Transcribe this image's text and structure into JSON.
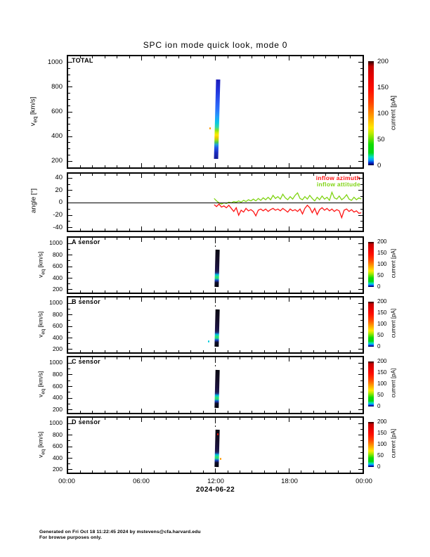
{
  "page": {
    "title": "SPC ion mode quick look, mode 0",
    "footer_line1": "Generated on Fri Oct 18 11:22:45 2024 by mstevens@cfa.harvard.edu",
    "footer_line2": "For browse purposes only."
  },
  "panels": {
    "total": {
      "label": "TOTAL"
    },
    "a": {
      "label": "A sensor"
    },
    "b": {
      "label": "B sensor"
    },
    "c": {
      "label": "C sensor"
    },
    "d": {
      "label": "D sensor"
    }
  },
  "ylabel_veq": {
    "base": "v",
    "sub": "eq",
    "unit": " [km/s]"
  },
  "ylabel_angle": "angle [°]",
  "legend": {
    "azimuth": {
      "label": "inflow azimuth",
      "color": "#ff1414"
    },
    "attitude": {
      "label": "inflow attitude",
      "color": "#80d414"
    }
  },
  "colorbar": {
    "label": "current [pA]",
    "ticks": [
      "200",
      "150",
      "100",
      "50",
      "0"
    ]
  },
  "chart_data": {
    "type": "heatmap",
    "title": "SPC ion mode quick look, mode 0",
    "date": "2024-06-22",
    "x_axis": {
      "ticks": [
        "00:00",
        "06:00",
        "12:00",
        "18:00",
        "00:00"
      ],
      "range_hours": [
        0,
        24
      ],
      "major_step_hours": 6,
      "minor_step_hours": 1
    },
    "colorbar": {
      "label": "current [pA]",
      "range_pA": [
        0,
        200
      ],
      "tick_values": [
        200,
        150,
        100,
        50,
        0
      ],
      "colormap_stops": [
        [
          0,
          "#000030"
        ],
        [
          2,
          "#0018c0"
        ],
        [
          5,
          "#00a0ff"
        ],
        [
          8,
          "#00e0c0"
        ],
        [
          12,
          "#00d818"
        ],
        [
          20,
          "#10dc00"
        ],
        [
          26,
          "#72e400"
        ],
        [
          31,
          "#c0ec00"
        ],
        [
          36,
          "#ffe800"
        ],
        [
          43,
          "#ffb800"
        ],
        [
          50,
          "#ff8800"
        ],
        [
          60,
          "#ff4400"
        ],
        [
          72,
          "#ff1000"
        ],
        [
          85,
          "#e60000"
        ],
        [
          95,
          "#c40000"
        ],
        [
          98,
          "#660000"
        ],
        [
          100,
          "#1c0000"
        ]
      ]
    },
    "spectrogram_panels": [
      {
        "id": "total",
        "label": "TOTAL",
        "ylabel": "veq [km/s]",
        "y_range": [
          150,
          1050
        ],
        "y_ticks": [
          1000,
          800,
          600,
          400,
          200
        ],
        "y_minor_step": 50,
        "streak": {
          "t_start": 11.95,
          "t_end": 12.3,
          "v_min": 217,
          "v_max": 861,
          "gradient_top_to_bottom": [
            [
              0,
              "#1c1cb8"
            ],
            [
              12,
              "#2130d8"
            ],
            [
              25,
              "#2850ee"
            ],
            [
              38,
              "#2b74fc"
            ],
            [
              47,
              "#22a0fa"
            ],
            [
              54,
              "#08c6e6"
            ],
            [
              60,
              "#30d8a8"
            ],
            [
              64,
              "#86e41c"
            ],
            [
              67,
              "#d2ec00"
            ],
            [
              70,
              "#ffe600"
            ],
            [
              73,
              "#f0ca00"
            ],
            [
              76,
              "#a8dc10"
            ],
            [
              79,
              "#4cc84c"
            ],
            [
              82,
              "#22a0dc"
            ],
            [
              86,
              "#2356e8"
            ],
            [
              92,
              "#1c2cc0"
            ],
            [
              100,
              "#141c96"
            ]
          ]
        },
        "dots": [
          {
            "t": 11.57,
            "v": 472,
            "color": "#ff9900"
          }
        ],
        "dash_at_t": null
      },
      {
        "id": "a",
        "label": "A sensor",
        "ylabel": "veq [km/s]",
        "y_range": [
          150,
          1100
        ],
        "y_ticks": [
          1000,
          800,
          600,
          400,
          200
        ],
        "y_minor_step": 100,
        "streak": {
          "t_start": 11.95,
          "t_end": 12.3,
          "v_min": 244,
          "v_max": 890,
          "gradient_top_to_bottom": [
            [
              0,
              "#0a0a12"
            ],
            [
              25,
              "#140e26"
            ],
            [
              45,
              "#1a123c"
            ],
            [
              58,
              "#201a50"
            ],
            [
              63,
              "#1e3c8c"
            ],
            [
              66,
              "#00a8dc"
            ],
            [
              70,
              "#10d8b0"
            ],
            [
              74,
              "#38e060"
            ],
            [
              78,
              "#18c8a0"
            ],
            [
              81,
              "#1068c8"
            ],
            [
              84,
              "#182ea0"
            ],
            [
              88,
              "#0e0e2e"
            ],
            [
              100,
              "#08080e"
            ]
          ]
        },
        "dots": [],
        "dash_at_t": 12.0
      },
      {
        "id": "b",
        "label": "B sensor",
        "ylabel": "veq [km/s]",
        "y_range": [
          150,
          1100
        ],
        "y_ticks": [
          1000,
          800,
          600,
          400,
          200
        ],
        "y_minor_step": 100,
        "streak": {
          "t_start": 11.95,
          "t_end": 12.3,
          "v_min": 244,
          "v_max": 890,
          "gradient_top_to_bottom": [
            [
              0,
              "#0a0a12"
            ],
            [
              25,
              "#140e26"
            ],
            [
              45,
              "#1a123c"
            ],
            [
              58,
              "#201a50"
            ],
            [
              63,
              "#1e3c8c"
            ],
            [
              66,
              "#00a8dc"
            ],
            [
              70,
              "#10d8b0"
            ],
            [
              74,
              "#38e060"
            ],
            [
              78,
              "#18c8a0"
            ],
            [
              81,
              "#1068c8"
            ],
            [
              84,
              "#182ea0"
            ],
            [
              88,
              "#0e0e2e"
            ],
            [
              100,
              "#08080e"
            ]
          ]
        },
        "dots": [
          {
            "t": 11.46,
            "v": 350,
            "color": "#00ccdd"
          }
        ],
        "dash_at_t": 12.0
      },
      {
        "id": "c",
        "label": "C sensor",
        "ylabel": "veq [km/s]",
        "y_range": [
          150,
          1100
        ],
        "y_ticks": [
          1000,
          800,
          600,
          400,
          200
        ],
        "y_minor_step": 100,
        "streak": {
          "t_start": 11.95,
          "t_end": 12.3,
          "v_min": 244,
          "v_max": 890,
          "gradient_top_to_bottom": [
            [
              0,
              "#0a0a12"
            ],
            [
              25,
              "#140e26"
            ],
            [
              45,
              "#1a123c"
            ],
            [
              58,
              "#201a50"
            ],
            [
              63,
              "#1e3c8c"
            ],
            [
              66,
              "#00a8dc"
            ],
            [
              70,
              "#10d8b0"
            ],
            [
              74,
              "#38e060"
            ],
            [
              78,
              "#18c8a0"
            ],
            [
              81,
              "#1068c8"
            ],
            [
              84,
              "#182ea0"
            ],
            [
              88,
              "#0e0e2e"
            ],
            [
              100,
              "#08080e"
            ]
          ]
        },
        "dots": [],
        "dash_at_t": 12.0
      },
      {
        "id": "d",
        "label": "D sensor",
        "ylabel": "veq [km/s]",
        "y_range": [
          150,
          1100
        ],
        "y_ticks": [
          1000,
          800,
          600,
          400,
          200
        ],
        "y_minor_step": 100,
        "streak": {
          "t_start": 11.95,
          "t_end": 12.3,
          "v_min": 244,
          "v_max": 890,
          "gradient_top_to_bottom": [
            [
              0,
              "#0a0a12"
            ],
            [
              25,
              "#140e26"
            ],
            [
              45,
              "#1a123c"
            ],
            [
              58,
              "#201a50"
            ],
            [
              63,
              "#1e3c8c"
            ],
            [
              66,
              "#00a8dc"
            ],
            [
              70,
              "#10d8b0"
            ],
            [
              74,
              "#38e060"
            ],
            [
              78,
              "#18c8a0"
            ],
            [
              81,
              "#1068c8"
            ],
            [
              84,
              "#182ea0"
            ],
            [
              88,
              "#0e0e2e"
            ],
            [
              100,
              "#08080e"
            ]
          ]
        },
        "dots": [
          {
            "t": 12.2,
            "v": 820,
            "color": "#ee1100"
          },
          {
            "t": 12.42,
            "v": 390,
            "color": "#ff9900"
          }
        ],
        "dash_at_t": 12.0
      }
    ],
    "angle_panel": {
      "ylabel": "angle [°]",
      "y_range": [
        -45,
        47
      ],
      "y_ticks": [
        40,
        20,
        0,
        -20,
        -40
      ],
      "y_minor_step": 10,
      "zero_line": 0,
      "series": [
        {
          "name": "inflow azimuth",
          "color": "#ff1414",
          "points": [
            [
              11.9,
              -3
            ],
            [
              12.1,
              -6
            ],
            [
              12.3,
              -2
            ],
            [
              12.5,
              -7
            ],
            [
              12.7,
              -5
            ],
            [
              12.9,
              -8
            ],
            [
              13.1,
              -4
            ],
            [
              13.3,
              -9
            ],
            [
              13.5,
              -14
            ],
            [
              13.7,
              -8
            ],
            [
              13.9,
              -20
            ],
            [
              14.1,
              -12
            ],
            [
              14.3,
              -15
            ],
            [
              14.5,
              -9
            ],
            [
              14.7,
              -13
            ],
            [
              14.9,
              -11
            ],
            [
              15.1,
              -14
            ],
            [
              15.3,
              -21
            ],
            [
              15.5,
              -12
            ],
            [
              15.7,
              -10
            ],
            [
              15.9,
              -13
            ],
            [
              16.1,
              -10
            ],
            [
              16.3,
              -14
            ],
            [
              16.5,
              -11
            ],
            [
              16.7,
              -9
            ],
            [
              16.9,
              -12
            ],
            [
              17.1,
              -10
            ],
            [
              17.3,
              -13
            ],
            [
              17.5,
              -9
            ],
            [
              17.7,
              -12
            ],
            [
              17.9,
              -15
            ],
            [
              18.1,
              -10
            ],
            [
              18.3,
              -13
            ],
            [
              18.5,
              -11
            ],
            [
              18.7,
              -14
            ],
            [
              18.9,
              -10
            ],
            [
              19.1,
              -18
            ],
            [
              19.3,
              -9
            ],
            [
              19.5,
              -4
            ],
            [
              19.7,
              -8
            ],
            [
              19.9,
              -16
            ],
            [
              20.1,
              -9
            ],
            [
              20.3,
              -19
            ],
            [
              20.5,
              -11
            ],
            [
              20.7,
              -8
            ],
            [
              20.9,
              -12
            ],
            [
              21.1,
              -9
            ],
            [
              21.3,
              -13
            ],
            [
              21.5,
              -10
            ],
            [
              21.7,
              -14
            ],
            [
              21.9,
              -11
            ],
            [
              22.1,
              -13
            ],
            [
              22.3,
              -24
            ],
            [
              22.5,
              -12
            ],
            [
              22.7,
              -10
            ],
            [
              22.9,
              -14
            ],
            [
              23.1,
              -11
            ],
            [
              23.3,
              -15
            ],
            [
              23.5,
              -13
            ],
            [
              23.7,
              -17
            ],
            [
              23.9,
              -16
            ]
          ]
        },
        {
          "name": "inflow attitude",
          "color": "#80d414",
          "points": [
            [
              11.9,
              7
            ],
            [
              12.1,
              3
            ],
            [
              12.3,
              0
            ],
            [
              12.5,
              -2
            ],
            [
              12.7,
              0
            ],
            [
              12.9,
              -1
            ],
            [
              13.1,
              1
            ],
            [
              13.3,
              0
            ],
            [
              13.5,
              2
            ],
            [
              13.7,
              1
            ],
            [
              13.9,
              3
            ],
            [
              14.1,
              1
            ],
            [
              14.3,
              4
            ],
            [
              14.5,
              2
            ],
            [
              14.7,
              5
            ],
            [
              14.9,
              3
            ],
            [
              15.1,
              6
            ],
            [
              15.3,
              3
            ],
            [
              15.5,
              7
            ],
            [
              15.7,
              4
            ],
            [
              15.9,
              8
            ],
            [
              16.1,
              5
            ],
            [
              16.3,
              9
            ],
            [
              16.5,
              5
            ],
            [
              16.7,
              12
            ],
            [
              16.9,
              7
            ],
            [
              17.1,
              10
            ],
            [
              17.3,
              6
            ],
            [
              17.5,
              14
            ],
            [
              17.7,
              8
            ],
            [
              17.9,
              5
            ],
            [
              18.1,
              10
            ],
            [
              18.3,
              6
            ],
            [
              18.5,
              12
            ],
            [
              18.7,
              16
            ],
            [
              18.9,
              7
            ],
            [
              19.1,
              5
            ],
            [
              19.3,
              10
            ],
            [
              19.5,
              6
            ],
            [
              19.7,
              12
            ],
            [
              19.9,
              7
            ],
            [
              20.1,
              3
            ],
            [
              20.3,
              9
            ],
            [
              20.5,
              5
            ],
            [
              20.7,
              11
            ],
            [
              20.9,
              6
            ],
            [
              21.1,
              9
            ],
            [
              21.3,
              4
            ],
            [
              21.5,
              17
            ],
            [
              21.7,
              8
            ],
            [
              21.9,
              6
            ],
            [
              22.1,
              11
            ],
            [
              22.3,
              5
            ],
            [
              22.5,
              8
            ],
            [
              22.7,
              13
            ],
            [
              22.9,
              6
            ],
            [
              23.1,
              4
            ],
            [
              23.3,
              9
            ],
            [
              23.5,
              5
            ],
            [
              23.7,
              8
            ],
            [
              23.9,
              6
            ]
          ]
        }
      ]
    }
  }
}
